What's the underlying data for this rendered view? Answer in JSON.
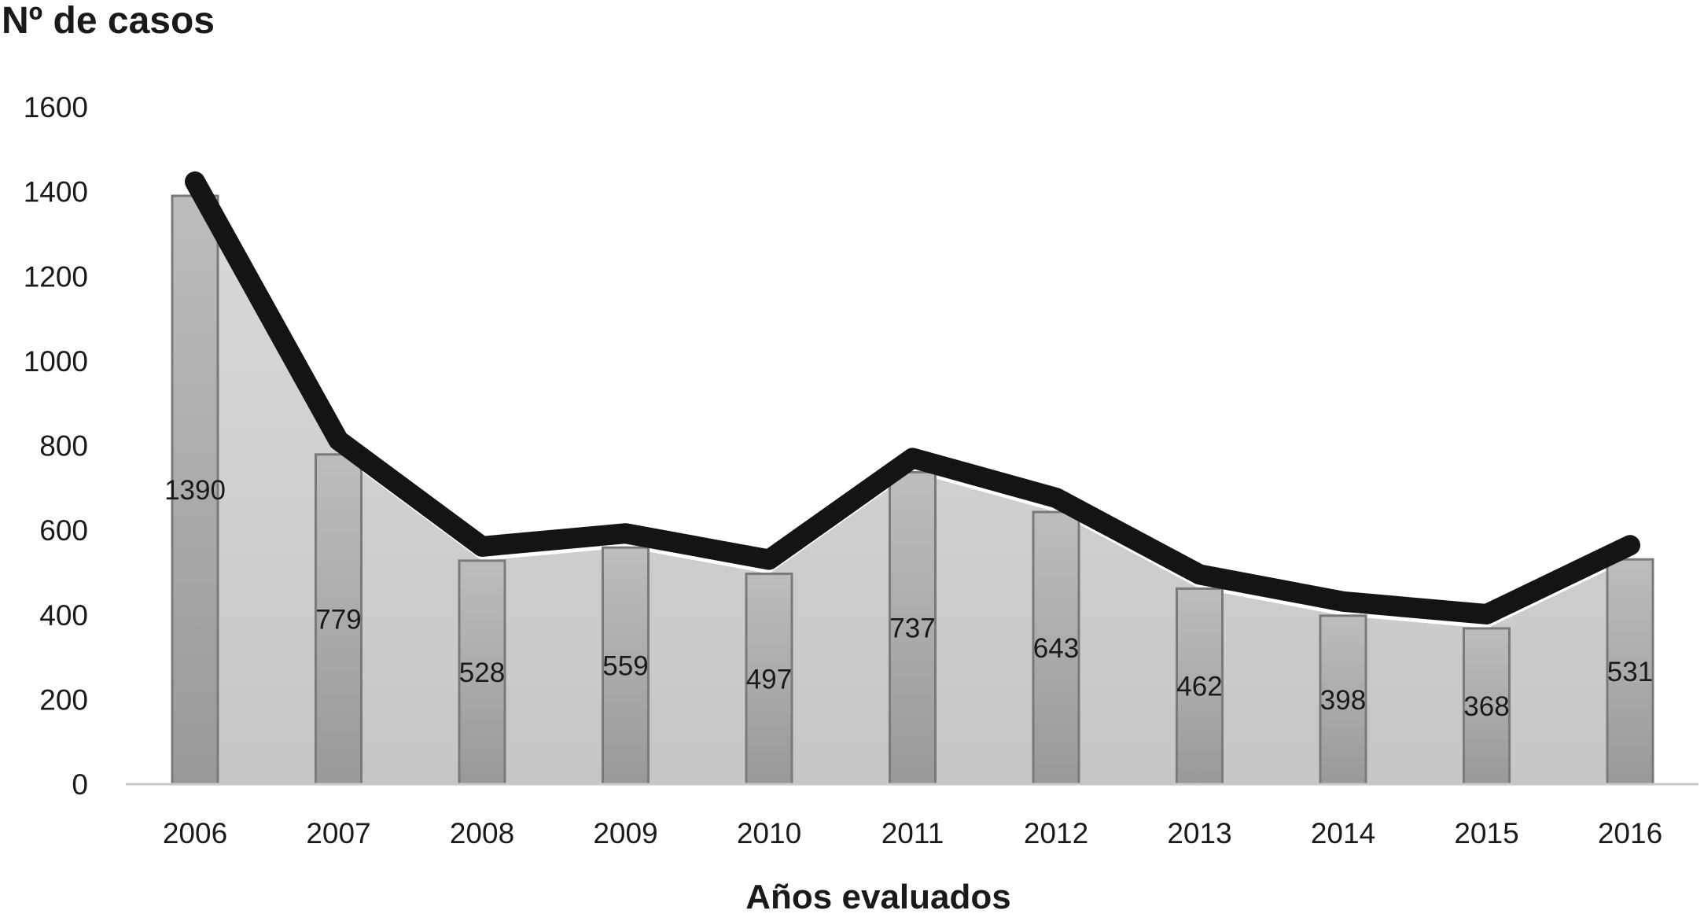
{
  "chart_data": {
    "type": "bar",
    "ylabel": "Nº de casos",
    "xlabel": "Años evaluados",
    "categories": [
      "2006",
      "2007",
      "2008",
      "2009",
      "2010",
      "2011",
      "2012",
      "2013",
      "2014",
      "2015",
      "2016"
    ],
    "values": [
      1390,
      779,
      528,
      559,
      497,
      737,
      643,
      462,
      398,
      368,
      531
    ],
    "ylim": [
      0,
      1600
    ],
    "yticks": [
      "0",
      "200",
      "400",
      "600",
      "800",
      "1000",
      "1200",
      "1400",
      "1600"
    ],
    "grid": false,
    "legend": "none",
    "overlay": "line-and-area over bars",
    "colors": {
      "bar_fill": "#a8a8a8",
      "bar_stroke": "#7a7a7a",
      "area_fill": "#cfcfcf",
      "line": "#141414",
      "axis": "#c8c8c8"
    }
  }
}
